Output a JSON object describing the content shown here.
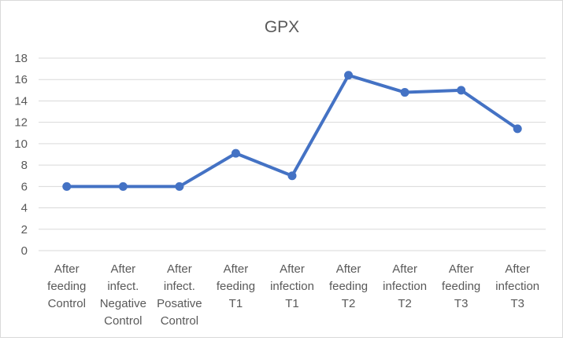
{
  "chart_data": {
    "type": "line",
    "title": "GPX",
    "xlabel": "",
    "ylabel": "",
    "ylim": [
      0,
      18
    ],
    "ytick_step": 2,
    "grid": true,
    "legend": "none",
    "categories": [
      [
        "After",
        "feeding",
        "Control"
      ],
      [
        "After",
        "infect.",
        "Negative",
        "Control"
      ],
      [
        "After",
        "infect.",
        "Posative",
        "Control"
      ],
      [
        "After",
        "feeding",
        "T1"
      ],
      [
        "After",
        "infection",
        "T1"
      ],
      [
        "After",
        "feeding",
        "T2"
      ],
      [
        "After",
        "infection",
        "T2"
      ],
      [
        "After",
        "feeding",
        "T3"
      ],
      [
        "After",
        "infection",
        "T3"
      ]
    ],
    "series": [
      {
        "color": "#4472c4",
        "values": [
          6.0,
          6.0,
          6.0,
          9.1,
          7.0,
          16.4,
          14.8,
          15.0,
          11.4
        ]
      }
    ]
  }
}
